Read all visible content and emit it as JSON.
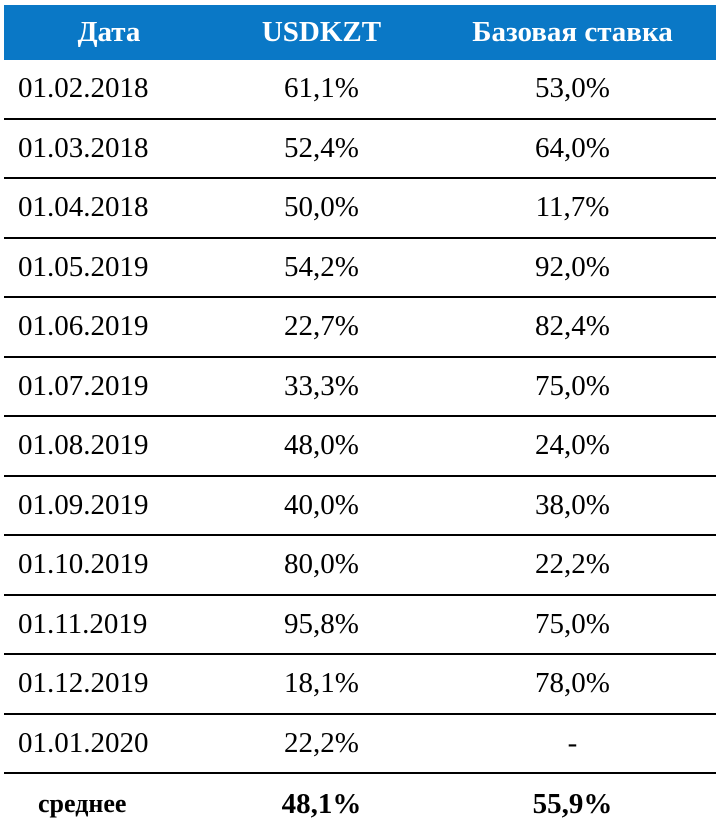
{
  "table": {
    "headers": [
      "Дата",
      "USDKZT",
      "Базовая ставка"
    ],
    "rows": [
      [
        "01.02.2018",
        "61,1%",
        "53,0%"
      ],
      [
        "01.03.2018",
        "52,4%",
        "64,0%"
      ],
      [
        "01.04.2018",
        "50,0%",
        "11,7%"
      ],
      [
        "01.05.2019",
        "54,2%",
        "92,0%"
      ],
      [
        "01.06.2019",
        "22,7%",
        "82,4%"
      ],
      [
        "01.07.2019",
        "33,3%",
        "75,0%"
      ],
      [
        "01.08.2019",
        "48,0%",
        "24,0%"
      ],
      [
        "01.09.2019",
        "40,0%",
        "38,0%"
      ],
      [
        "01.10.2019",
        "80,0%",
        "22,2%"
      ],
      [
        "01.11.2019",
        "95,8%",
        "75,0%"
      ],
      [
        "01.12.2019",
        "18,1%",
        "78,0%"
      ],
      [
        "01.01.2020",
        "22,2%",
        "-"
      ]
    ],
    "footer": [
      "среднее",
      "48,1%",
      "55,9%"
    ],
    "colors": {
      "header_bg": "#0a78c6",
      "header_text": "#ffffff",
      "row_border": "#000000"
    }
  }
}
